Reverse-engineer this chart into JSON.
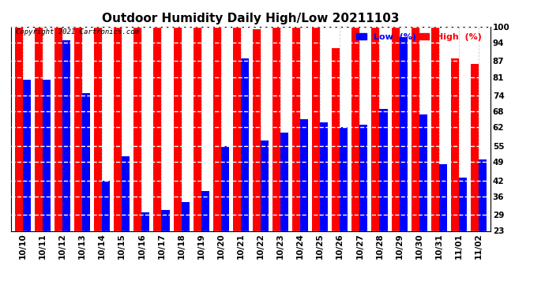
{
  "title": "Outdoor Humidity Daily High/Low 20211103",
  "copyright": "Copyright 2021 Cartronics.com",
  "legend_low": "Low  (%)",
  "legend_high": "High  (%)",
  "dates": [
    "10/10",
    "10/11",
    "10/12",
    "10/13",
    "10/14",
    "10/15",
    "10/16",
    "10/17",
    "10/18",
    "10/19",
    "10/20",
    "10/21",
    "10/22",
    "10/23",
    "10/24",
    "10/25",
    "10/26",
    "10/27",
    "10/28",
    "10/29",
    "10/30",
    "10/31",
    "11/01",
    "11/02"
  ],
  "high": [
    100,
    100,
    100,
    100,
    100,
    100,
    100,
    100,
    100,
    100,
    100,
    100,
    99,
    100,
    100,
    100,
    92,
    100,
    100,
    100,
    100,
    100,
    88,
    86
  ],
  "low": [
    80,
    80,
    95,
    75,
    42,
    51,
    30,
    31,
    34,
    38,
    55,
    88,
    57,
    60,
    65,
    64,
    62,
    63,
    69,
    96,
    67,
    48,
    43,
    50
  ],
  "ylim_min": 23,
  "ylim_max": 100,
  "yticks": [
    23,
    29,
    36,
    42,
    49,
    55,
    62,
    68,
    74,
    81,
    87,
    94,
    100
  ],
  "color_high": "#ff0000",
  "color_low": "#0000ff",
  "bg_color": "#ffffff",
  "bar_width": 0.4,
  "title_fontsize": 11,
  "tick_fontsize": 7.5,
  "legend_fontsize": 8
}
